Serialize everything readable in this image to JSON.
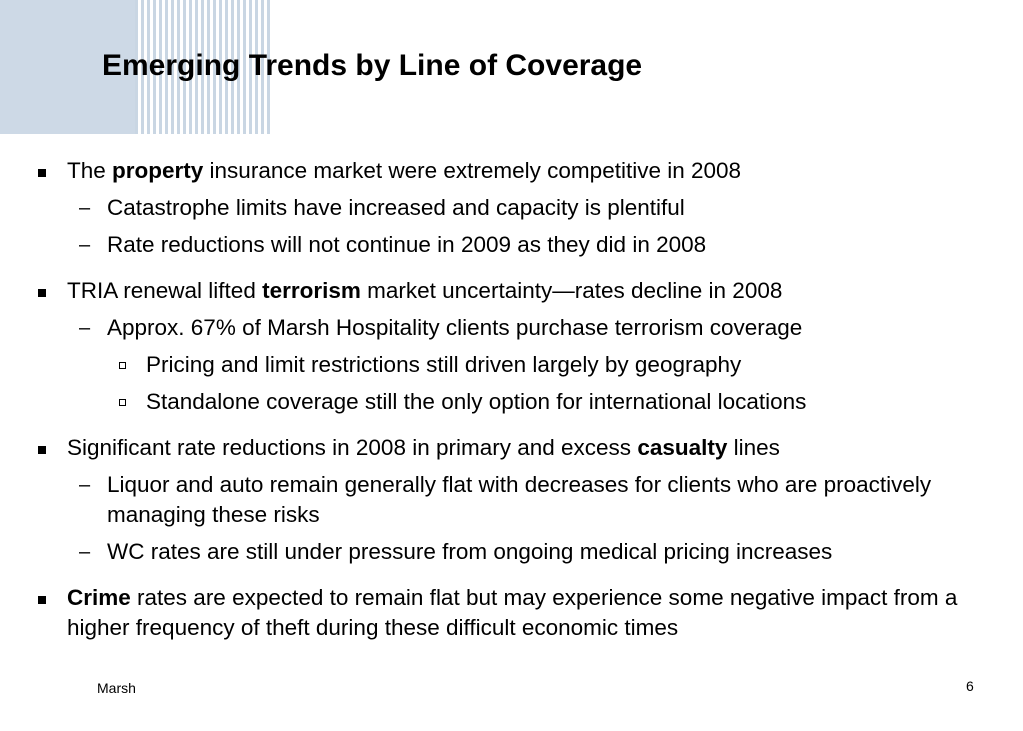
{
  "slide": {
    "title": "Emerging Trends by Line of Coverage",
    "footer_left": "Marsh",
    "page_number": "6"
  },
  "bullets": [
    {
      "pre": "The ",
      "bold": "property",
      "post": " insurance market were extremely competitive in 2008",
      "subs": [
        "Catastrophe limits have increased and capacity is plentiful",
        "Rate reductions will not continue in 2009 as they did in 2008"
      ]
    },
    {
      "pre": "TRIA renewal lifted ",
      "bold": "terrorism",
      "post": " market uncertainty—rates decline in 2008",
      "subs": [
        "Approx. 67% of Marsh Hospitality clients purchase terrorism coverage"
      ],
      "subsubs": [
        "Pricing and limit restrictions still driven largely by geography",
        "Standalone coverage still the only option for international locations"
      ]
    },
    {
      "pre": "Significant rate reductions in 2008 in primary and excess ",
      "bold": "casualty",
      "post": " lines",
      "subs": [
        "Liquor and auto remain generally flat with decreases for clients who are proactively managing these risks",
        "WC rates are still under pressure from ongoing medical pricing increases"
      ]
    },
    {
      "pre": "",
      "bold": "Crime",
      "post": " rates are expected to remain flat but may experience some negative impact from a higher frequency of theft during these difficult economic times"
    }
  ],
  "markers": {
    "level2": "–"
  }
}
